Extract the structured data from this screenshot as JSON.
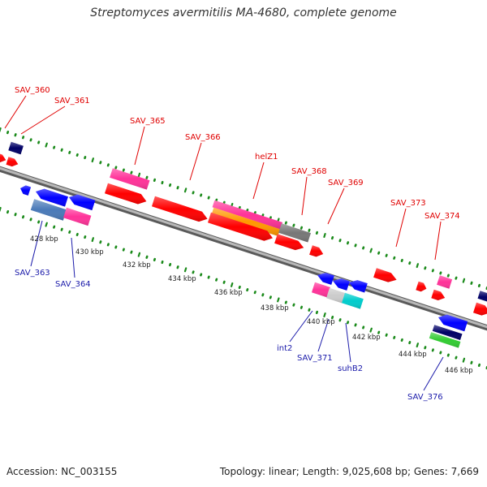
{
  "title": "Streptomyces avermitilis MA-4680, complete genome",
  "accession": "Accession: NC_003155",
  "summary": "Topology: linear; Length: 9,025,608 bp; Genes: 7,669",
  "kbp_labels": [
    "428 kbp",
    "430 kbp",
    "432 kbp",
    "434 kbp",
    "436 kbp",
    "438 kbp",
    "440 kbp",
    "442 kbp",
    "444 kbp",
    "446 kbp"
  ],
  "forward_labels": [
    "SAV_360",
    "SAV_361",
    "SAV_365",
    "SAV_366",
    "helZ1",
    "SAV_368",
    "SAV_369",
    "SAV_373",
    "SAV_374"
  ],
  "reverse_labels": [
    "SAV_363",
    "SAV_364",
    "int2",
    "SAV_371",
    "suhB2",
    "SAV_376"
  ],
  "colors": {
    "forward_label": "#e00000",
    "reverse_label": "#1a1aaa",
    "backbone": "#8a8a8a",
    "tick": "#1a8a1a",
    "gene_red": "#ff0000",
    "gene_blue": "#0000ff",
    "gene_pink": "#ff3399",
    "gene_navy": "#000066",
    "gene_steel": "#4a7ab8",
    "gene_orange": "#ff9900",
    "gene_gray": "#777777",
    "gene_lightgray": "#cccccc",
    "gene_cyan": "#00cccc",
    "gene_green": "#33cc33"
  }
}
